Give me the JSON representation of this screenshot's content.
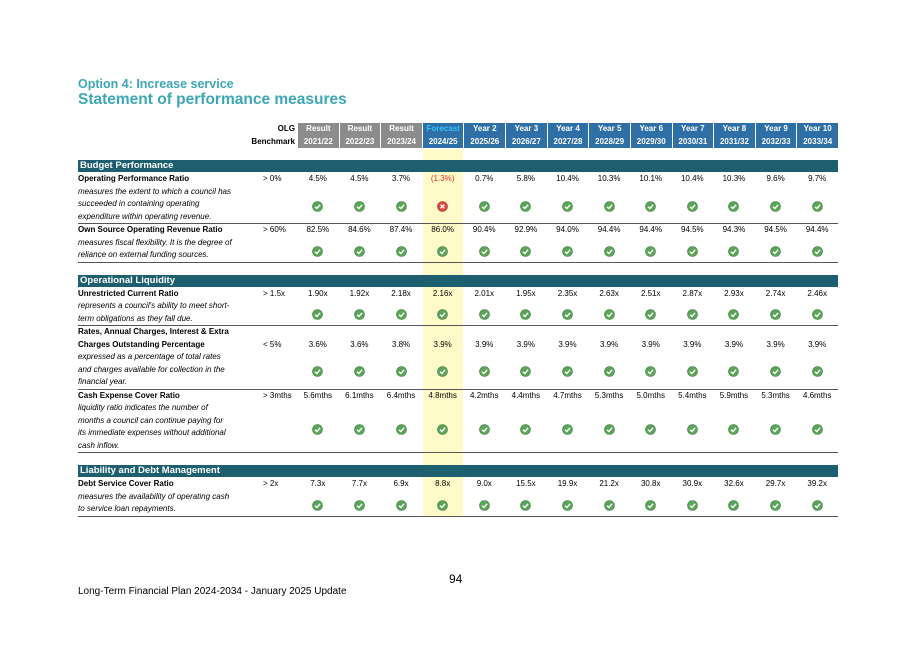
{
  "page": {
    "title": "Option 4: Increase service",
    "subtitle": "Statement of performance measures",
    "header": {
      "benchmark": [
        "OLG",
        "Benchmark"
      ],
      "columns": [
        {
          "top": "Result",
          "bottom": "2021/22",
          "kind": "result"
        },
        {
          "top": "Result",
          "bottom": "2022/23",
          "kind": "result"
        },
        {
          "top": "Result",
          "bottom": "2023/24",
          "kind": "result"
        },
        {
          "top": "Forecast",
          "bottom": "2024/25",
          "kind": "forecast"
        },
        {
          "top": "Year 2",
          "bottom": "2025/26",
          "kind": "year"
        },
        {
          "top": "Year 3",
          "bottom": "2026/27",
          "kind": "year"
        },
        {
          "top": "Year 4",
          "bottom": "2027/28",
          "kind": "year"
        },
        {
          "top": "Year 5",
          "bottom": "2028/29",
          "kind": "year"
        },
        {
          "top": "Year 6",
          "bottom": "2029/30",
          "kind": "year"
        },
        {
          "top": "Year 7",
          "bottom": "2030/31",
          "kind": "year"
        },
        {
          "top": "Year 8",
          "bottom": "2031/32",
          "kind": "year"
        },
        {
          "top": "Year 9",
          "bottom": "2032/33",
          "kind": "year"
        },
        {
          "top": "Year 10",
          "bottom": "2033/34",
          "kind": "year"
        }
      ]
    },
    "sections": [
      {
        "title": "Budget Performance",
        "measures": [
          {
            "name": [
              "Operating Performance Ratio"
            ],
            "description": [
              "measures the extent to which a council has",
              "succeeded in containing operating",
              "expenditure within operating revenue."
            ],
            "benchmark": "> 0%",
            "values": [
              "4.5%",
              "4.5%",
              "3.7%",
              "(1.3%)",
              "0.7%",
              "5.8%",
              "10.4%",
              "10.3%",
              "10.1%",
              "10.4%",
              "10.3%",
              "9.6%",
              "9.7%"
            ],
            "met": [
              true,
              true,
              true,
              false,
              true,
              true,
              true,
              true,
              true,
              true,
              true,
              true,
              true
            ]
          },
          {
            "name": [
              "Own Source Operating Revenue Ratio"
            ],
            "description": [
              "measures fiscal flexibility. It is the degree of",
              "reliance on external funding sources."
            ],
            "benchmark": "> 60%",
            "values": [
              "82.5%",
              "84.6%",
              "87.4%",
              "86.0%",
              "90.4%",
              "92.9%",
              "94.0%",
              "94.4%",
              "94.4%",
              "94.5%",
              "94.3%",
              "94.5%",
              "94.4%"
            ],
            "met": [
              true,
              true,
              true,
              true,
              true,
              true,
              true,
              true,
              true,
              true,
              true,
              true,
              true
            ]
          }
        ]
      },
      {
        "title": "Operational Liquidity",
        "measures": [
          {
            "name": [
              "Unrestricted Current Ratio"
            ],
            "description": [
              "represents a council's ability to meet short-",
              "term obligations as they fall due."
            ],
            "benchmark": "> 1.5x",
            "values": [
              "1.90x",
              "1.92x",
              "2.18x",
              "2.16x",
              "2.01x",
              "1.95x",
              "2.35x",
              "2.63x",
              "2.51x",
              "2.87x",
              "2.93x",
              "2.74x",
              "2.46x"
            ],
            "met": [
              true,
              true,
              true,
              true,
              true,
              true,
              true,
              true,
              true,
              true,
              true,
              true,
              true
            ]
          },
          {
            "name": [
              "Rates, Annual Charges, Interest & Extra",
              "Charges Outstanding Percentage"
            ],
            "description": [
              "expressed as a percentage of total rates",
              "and charges available for collection in the",
              "financial year."
            ],
            "benchmark": "< 5%",
            "values": [
              "3.6%",
              "3.6%",
              "3.8%",
              "3.9%",
              "3.9%",
              "3.9%",
              "3.9%",
              "3.9%",
              "3.9%",
              "3.9%",
              "3.9%",
              "3.9%",
              "3.9%"
            ],
            "met": [
              true,
              true,
              true,
              true,
              true,
              true,
              true,
              true,
              true,
              true,
              true,
              true,
              true
            ]
          },
          {
            "name": [
              "Cash Expense Cover Ratio"
            ],
            "description": [
              "liquidity ratio indicates the number of",
              "months a council can continue paying for",
              "its immediate expenses without additional",
              "cash inflow."
            ],
            "benchmark": "> 3mths",
            "values": [
              "5.6mths",
              "6.1mths",
              "6.4mths",
              "4.8mths",
              "4.2mths",
              "4.4mths",
              "4.7mths",
              "5.3mths",
              "5.0mths",
              "5.4mths",
              "5.9mths",
              "5.3mths",
              "4.6mths"
            ],
            "met": [
              true,
              true,
              true,
              true,
              true,
              true,
              true,
              true,
              true,
              true,
              true,
              true,
              true
            ]
          }
        ]
      },
      {
        "title": "Liability and Debt Management",
        "measures": [
          {
            "name": [
              "Debt Service Cover Ratio"
            ],
            "description": [
              "measures the availability of operating cash",
              "to service loan repayments."
            ],
            "benchmark": "> 2x",
            "values": [
              "7.3x",
              "7.7x",
              "6.9x",
              "8.8x",
              "9.0x",
              "15.5x",
              "19.9x",
              "21.2x",
              "30.8x",
              "30.9x",
              "32.6x",
              "29.7x",
              "39.2x"
            ],
            "met": [
              true,
              true,
              true,
              true,
              true,
              true,
              true,
              true,
              true,
              true,
              true,
              true,
              true
            ]
          }
        ]
      }
    ],
    "footer": {
      "page_number": "94",
      "text": "Long-Term Financial Plan 2024-2034 - January 2025 Update"
    }
  }
}
